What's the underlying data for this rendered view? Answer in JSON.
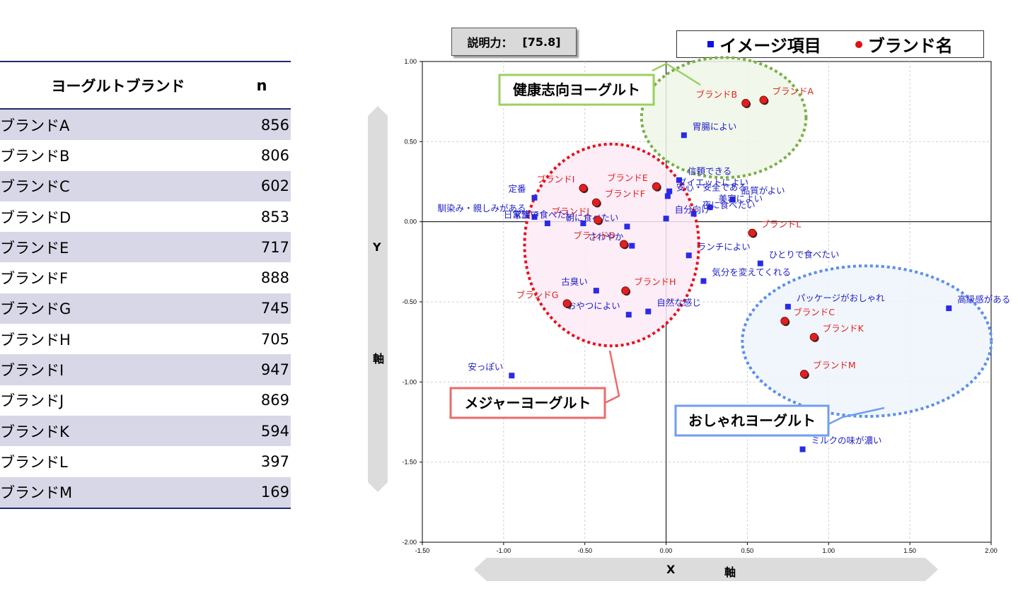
{
  "table": {
    "header_name": "ヨーグルトブランド",
    "header_n": "n",
    "rows": [
      {
        "name": "ブランドA",
        "n": "856"
      },
      {
        "name": "ブランドB",
        "n": "806"
      },
      {
        "name": "ブランドC",
        "n": "602"
      },
      {
        "name": "ブランドD",
        "n": "853"
      },
      {
        "name": "ブランドE",
        "n": "717"
      },
      {
        "name": "ブランドF",
        "n": "888"
      },
      {
        "name": "ブランドG",
        "n": "745"
      },
      {
        "name": "ブランドH",
        "n": "705"
      },
      {
        "name": "ブランドI",
        "n": "947"
      },
      {
        "name": "ブランドJ",
        "n": "869"
      },
      {
        "name": "ブランドK",
        "n": "594"
      },
      {
        "name": "ブランドL",
        "n": "397"
      },
      {
        "name": "ブランドM",
        "n": "169"
      }
    ]
  },
  "explain": {
    "label": "説明力：",
    "value": "[75.8]"
  },
  "legend": {
    "item_label": "イメージ項目",
    "brand_label": "ブランド名",
    "item_color": "#1010e0",
    "brand_color": "#e01010"
  },
  "axes": {
    "y_letter": "Y",
    "y_word": "軸",
    "x_letter": "X",
    "x_word": "軸"
  },
  "chart_data": {
    "type": "scatter",
    "xlim": [
      -1.5,
      2.0
    ],
    "ylim": [
      -2.0,
      1.0
    ],
    "x_ticks": [
      "-1.50",
      "-1.00",
      "-0.50",
      "0.00",
      "0.50",
      "1.00",
      "1.50",
      "2.00"
    ],
    "y_ticks": [
      "1.00",
      "0.50",
      "0.00",
      "-0.50",
      "-1.00",
      "-1.50",
      "-2.00"
    ],
    "grid": true,
    "series": [
      {
        "name": "イメージ項目",
        "marker": "square",
        "color": "#2a2ae6",
        "points": [
          {
            "label": "胃腸によい",
            "x": 0.11,
            "y": 0.54
          },
          {
            "label": "信頼できる",
            "x": 0.08,
            "y": 0.26
          },
          {
            "label": "ダイエットによい",
            "x": 0.02,
            "y": 0.19
          },
          {
            "label": "安心・安全である",
            "x": 0.01,
            "y": 0.16
          },
          {
            "label": "品質がよい",
            "x": 0.41,
            "y": 0.14
          },
          {
            "label": "美容によい",
            "x": 0.27,
            "y": 0.09
          },
          {
            "label": "夜に食べたい",
            "x": 0.17,
            "y": 0.05
          },
          {
            "label": "自分向け",
            "x": 0.0,
            "y": 0.02
          },
          {
            "label": "朝に食べたい",
            "x": -0.24,
            "y": -0.03
          },
          {
            "label": "さわやか",
            "x": -0.21,
            "y": -0.15
          },
          {
            "label": "定番",
            "x": -0.81,
            "y": 0.15
          },
          {
            "label": "馴染み・親しみがある",
            "x": -0.81,
            "y": 0.03
          },
          {
            "label": "日常使い",
            "x": -0.73,
            "y": -0.01
          },
          {
            "label": "家族で食べたい",
            "x": -0.51,
            "y": -0.01
          },
          {
            "label": "ランチによい",
            "x": 0.14,
            "y": -0.21
          },
          {
            "label": "ひとりで食べたい",
            "x": 0.58,
            "y": -0.26
          },
          {
            "label": "気分を変えてくれる",
            "x": 0.23,
            "y": -0.37
          },
          {
            "label": "古臭い",
            "x": -0.43,
            "y": -0.43
          },
          {
            "label": "おやつによい",
            "x": -0.23,
            "y": -0.58
          },
          {
            "label": "自然な感じ",
            "x": -0.11,
            "y": -0.56
          },
          {
            "label": "パッケージがおしゃれ",
            "x": 0.75,
            "y": -0.53
          },
          {
            "label": "高級感がある",
            "x": 1.74,
            "y": -0.54
          },
          {
            "label": "安っぽい",
            "x": -0.95,
            "y": -0.96
          },
          {
            "label": "ミルクの味が濃い",
            "x": 0.84,
            "y": -1.42
          }
        ]
      },
      {
        "name": "ブランド名",
        "marker": "circle",
        "color": "#e02020",
        "points": [
          {
            "label": "ブランドA",
            "x": 0.6,
            "y": 0.76
          },
          {
            "label": "ブランドB",
            "x": 0.49,
            "y": 0.74
          },
          {
            "label": "ブランドC",
            "x": 0.73,
            "y": -0.62
          },
          {
            "label": "ブランドD",
            "x": -0.26,
            "y": -0.14
          },
          {
            "label": "ブランドE",
            "x": -0.06,
            "y": 0.22
          },
          {
            "label": "ブランドF",
            "x": -0.43,
            "y": 0.12
          },
          {
            "label": "ブランドG",
            "x": -0.61,
            "y": -0.51
          },
          {
            "label": "ブランドH",
            "x": -0.25,
            "y": -0.43
          },
          {
            "label": "ブランドI",
            "x": -0.51,
            "y": 0.21
          },
          {
            "label": "ブランドJ",
            "x": -0.42,
            "y": 0.01
          },
          {
            "label": "ブランドK",
            "x": 0.91,
            "y": -0.72
          },
          {
            "label": "ブランドL",
            "x": 0.53,
            "y": -0.07
          },
          {
            "label": "ブランドM",
            "x": 0.85,
            "y": -0.95
          }
        ]
      }
    ],
    "groups": [
      {
        "label": "健康志向ヨーグルト",
        "color": "#7aaf46",
        "fill": "#eef6e6",
        "box_border": "#9ad05e",
        "members": [
          "ブランドA",
          "ブランドB",
          "胃腸によい"
        ]
      },
      {
        "label": "メジャーヨーグルト",
        "color": "#e8101e",
        "fill": "#fdeaf6",
        "box_border": "#ee6a6a",
        "members": [
          "ブランドD",
          "ブランドE",
          "ブランドF",
          "ブランドG",
          "ブランドH",
          "ブランドI",
          "ブランドJ"
        ]
      },
      {
        "label": "おしゃれヨーグルト",
        "color": "#5b8ef0",
        "fill": "#eef4fc",
        "box_border": "#6f9ef0",
        "members": [
          "ブランドC",
          "ブランドK",
          "ブランドM",
          "高級感がある"
        ]
      }
    ]
  }
}
